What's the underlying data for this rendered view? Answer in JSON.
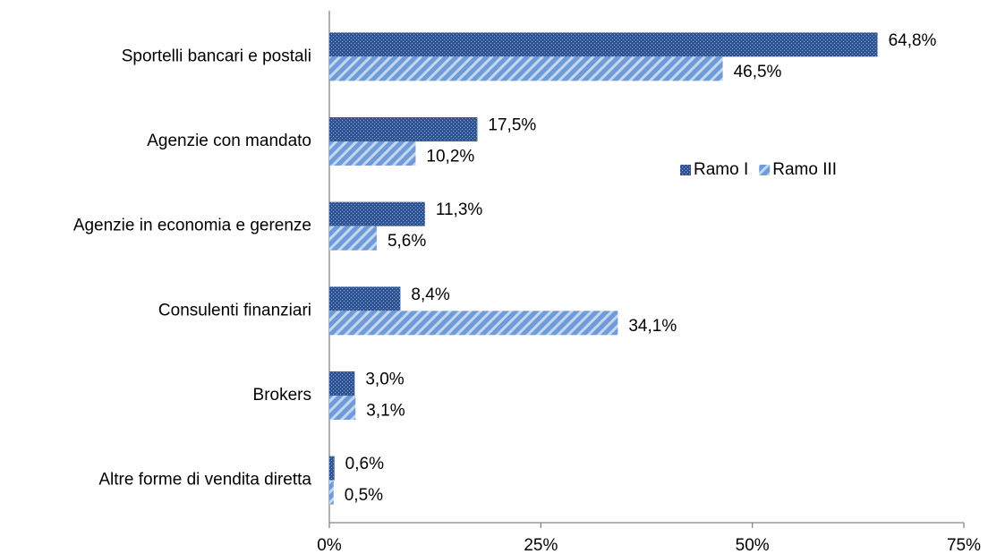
{
  "chart_data": {
    "type": "hbar",
    "categories": [
      "Sportelli bancari e postali",
      "Agenzie con mandato",
      "Agenzie in economia e gerenze",
      "Consulenti finanziari",
      "Brokers",
      "Altre forme di vendita diretta"
    ],
    "series": [
      {
        "name": "Ramo I",
        "color": "#2f5597",
        "values": [
          64.8,
          17.5,
          11.3,
          8.4,
          3.0,
          0.6
        ],
        "value_labels": [
          "64,8%",
          "17,5%",
          "11,3%",
          "8,4%",
          "3,0%",
          "0,6%"
        ]
      },
      {
        "name": "Ramo III",
        "color": "#6f9bd8",
        "values": [
          46.5,
          10.2,
          5.6,
          34.1,
          3.1,
          0.5
        ],
        "value_labels": [
          "46,5%",
          "10,2%",
          "5,6%",
          "34,1%",
          "3,1%",
          "0,5%"
        ]
      }
    ],
    "xlim": [
      0,
      75
    ],
    "xticks": [
      {
        "value": 0,
        "label": "0%"
      },
      {
        "value": 25,
        "label": "25%"
      },
      {
        "value": 50,
        "label": "50%"
      },
      {
        "value": 75,
        "label": "75%"
      }
    ],
    "legend": "right"
  }
}
